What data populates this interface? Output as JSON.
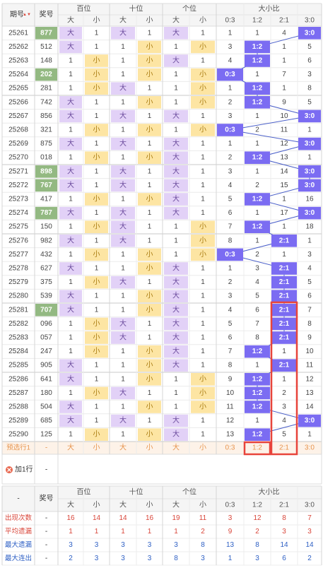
{
  "header": {
    "issue": "期号",
    "sort_arrow": "▲▼",
    "prize": "奖号",
    "groups": [
      "百位",
      "十位",
      "个位",
      "大小比"
    ],
    "big": "大",
    "small": "小",
    "ratios": [
      "0:3",
      "1:2",
      "2:1",
      "3:0"
    ]
  },
  "rows": [
    {
      "issue": "25261",
      "num": "877",
      "hl": true,
      "d": [
        "大",
        "大",
        "大"
      ],
      "rc": [
        1,
        1,
        4
      ],
      "r": 3
    },
    {
      "issue": "25262",
      "num": "512",
      "hl": false,
      "d": [
        "大",
        "小",
        "小"
      ],
      "rc": [
        3,
        1,
        5
      ],
      "r": 1
    },
    {
      "issue": "25263",
      "num": "148",
      "hl": false,
      "d": [
        "小",
        "小",
        "大"
      ],
      "rc": [
        4,
        1,
        6
      ],
      "r": 1
    },
    {
      "issue": "25264",
      "num": "202",
      "hl": true,
      "d": [
        "小",
        "小",
        "小"
      ],
      "rc": [
        1,
        7,
        3
      ],
      "r": 0
    },
    {
      "issue": "25265",
      "num": "281",
      "hl": false,
      "d": [
        "小",
        "大",
        "小"
      ],
      "rc": [
        1,
        1,
        8
      ],
      "r": 1
    },
    {
      "issue": "25266",
      "num": "742",
      "hl": false,
      "d": [
        "大",
        "小",
        "小"
      ],
      "rc": [
        2,
        9,
        5
      ],
      "r": 1
    },
    {
      "issue": "25267",
      "num": "856",
      "hl": false,
      "d": [
        "大",
        "大",
        "大"
      ],
      "rc": [
        3,
        1,
        10
      ],
      "r": 3
    },
    {
      "issue": "25268",
      "num": "321",
      "hl": false,
      "d": [
        "小",
        "小",
        "小"
      ],
      "rc": [
        2,
        11,
        1
      ],
      "r": 0
    },
    {
      "issue": "25269",
      "num": "875",
      "hl": false,
      "d": [
        "大",
        "大",
        "大"
      ],
      "rc": [
        1,
        1,
        12
      ],
      "r": 3
    },
    {
      "issue": "25270",
      "num": "018",
      "hl": false,
      "d": [
        "小",
        "小",
        "大"
      ],
      "rc": [
        2,
        13,
        1
      ],
      "r": 1
    },
    {
      "issue": "25271",
      "num": "898",
      "hl": true,
      "d": [
        "大",
        "大",
        "大"
      ],
      "rc": [
        3,
        1,
        14
      ],
      "r": 3
    },
    {
      "issue": "25272",
      "num": "767",
      "hl": true,
      "d": [
        "大",
        "大",
        "大"
      ],
      "rc": [
        4,
        2,
        15
      ],
      "r": 3
    },
    {
      "issue": "25273",
      "num": "417",
      "hl": false,
      "d": [
        "小",
        "小",
        "大"
      ],
      "rc": [
        5,
        1,
        16
      ],
      "r": 1
    },
    {
      "issue": "25274",
      "num": "787",
      "hl": true,
      "d": [
        "大",
        "大",
        "大"
      ],
      "rc": [
        6,
        1,
        17
      ],
      "r": 3
    },
    {
      "issue": "25275",
      "num": "150",
      "hl": false,
      "d": [
        "小",
        "大",
        "小"
      ],
      "rc": [
        7,
        1,
        18
      ],
      "r": 1
    },
    {
      "issue": "25276",
      "num": "982",
      "hl": false,
      "d": [
        "大",
        "大",
        "小"
      ],
      "rc": [
        8,
        1,
        1
      ],
      "r": 2
    },
    {
      "issue": "25277",
      "num": "432",
      "hl": false,
      "d": [
        "小",
        "小",
        "小"
      ],
      "rc": [
        2,
        1,
        3
      ],
      "r": 0
    },
    {
      "issue": "25278",
      "num": "627",
      "hl": false,
      "d": [
        "大",
        "小",
        "大"
      ],
      "rc": [
        1,
        3,
        4
      ],
      "r": 2
    },
    {
      "issue": "25279",
      "num": "375",
      "hl": false,
      "d": [
        "小",
        "大",
        "大"
      ],
      "rc": [
        2,
        4,
        5
      ],
      "r": 2
    },
    {
      "issue": "25280",
      "num": "539",
      "hl": false,
      "d": [
        "大",
        "小",
        "大"
      ],
      "rc": [
        3,
        5,
        6
      ],
      "r": 2
    },
    {
      "issue": "25281",
      "num": "707",
      "hl": true,
      "d": [
        "大",
        "小",
        "大"
      ],
      "rc": [
        4,
        6,
        7
      ],
      "r": 2
    },
    {
      "issue": "25282",
      "num": "096",
      "hl": false,
      "d": [
        "小",
        "大",
        "大"
      ],
      "rc": [
        5,
        7,
        8
      ],
      "r": 2
    },
    {
      "issue": "25283",
      "num": "057",
      "hl": false,
      "d": [
        "小",
        "大",
        "大"
      ],
      "rc": [
        6,
        8,
        9
      ],
      "r": 2
    },
    {
      "issue": "25284",
      "num": "247",
      "hl": false,
      "d": [
        "小",
        "小",
        "大"
      ],
      "rc": [
        7,
        1,
        10
      ],
      "r": 1
    },
    {
      "issue": "25285",
      "num": "905",
      "hl": false,
      "d": [
        "大",
        "小",
        "大"
      ],
      "rc": [
        8,
        1,
        11
      ],
      "r": 2
    },
    {
      "issue": "25286",
      "num": "641",
      "hl": false,
      "d": [
        "大",
        "小",
        "小"
      ],
      "rc": [
        9,
        1,
        12
      ],
      "r": 1
    },
    {
      "issue": "25287",
      "num": "180",
      "hl": false,
      "d": [
        "小",
        "大",
        "小"
      ],
      "rc": [
        10,
        2,
        13
      ],
      "r": 1
    },
    {
      "issue": "25288",
      "num": "504",
      "hl": false,
      "d": [
        "大",
        "小",
        "小"
      ],
      "rc": [
        11,
        3,
        14
      ],
      "r": 1
    },
    {
      "issue": "25289",
      "num": "685",
      "hl": false,
      "d": [
        "大",
        "大",
        "大"
      ],
      "rc": [
        12,
        1,
        4
      ],
      "r": 3
    },
    {
      "issue": "25290",
      "num": "125",
      "hl": false,
      "d": [
        "小",
        "小",
        "大"
      ],
      "rc": [
        13,
        5,
        1
      ],
      "r": 1
    }
  ],
  "predict": {
    "label": "预选行1",
    "dash": "-",
    "cells": [
      "大",
      "小",
      "大",
      "小",
      "大",
      "小",
      "0:3",
      "1:2",
      "2:1",
      "3:0"
    ]
  },
  "add_row": {
    "label": "加1行",
    "dash": "-"
  },
  "footer": {
    "dash": "-",
    "prize": "奖号",
    "stats": [
      {
        "label": "出现次数",
        "values": [
          16,
          14,
          14,
          16,
          19,
          11,
          3,
          12,
          8,
          7
        ]
      },
      {
        "label": "平均遗漏",
        "values": [
          1,
          1,
          1,
          1,
          1,
          2,
          9,
          2,
          3,
          3
        ]
      },
      {
        "label": "最大遗漏",
        "values": [
          3,
          3,
          3,
          3,
          3,
          8,
          13,
          8,
          14,
          14
        ]
      },
      {
        "label": "最大连出",
        "values": [
          2,
          3,
          3,
          3,
          8,
          3,
          1,
          3,
          6,
          2
        ]
      }
    ]
  },
  "colors": {
    "big_bg": "#e2d1f7",
    "small_bg": "#fde5a3",
    "hit_bg": "#7b6cf2",
    "num_hl": "#93b982",
    "label_red": "#d9463a",
    "label_blue": "#2d5fc4",
    "border_red": "#e8443b",
    "predict_bg": "#fdf2e8",
    "predict_text": "#e7954f"
  }
}
